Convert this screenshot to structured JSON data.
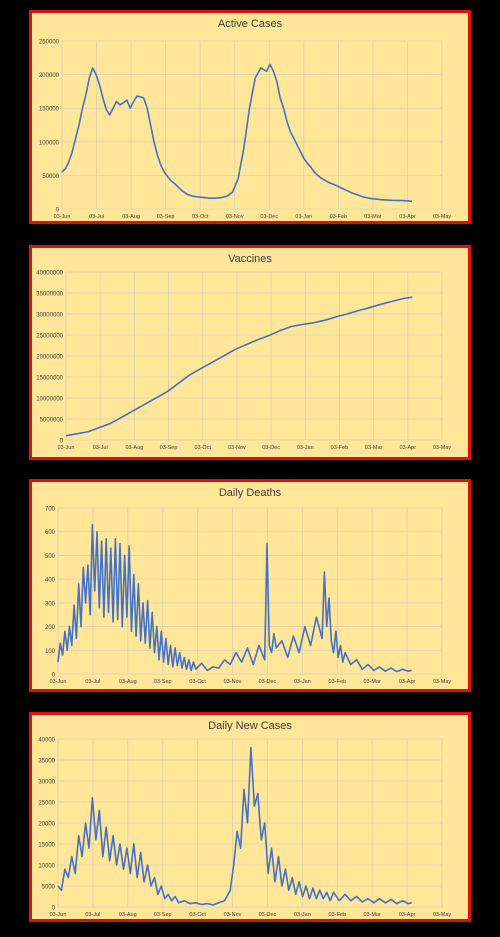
{
  "colors": {
    "background": "#000000",
    "panel_fill": "#ffe699",
    "panel_border": "#e01010",
    "line": "#4472c4",
    "grid": "#d9d0b0",
    "text": "#404040"
  },
  "chart_data": [
    {
      "type": "line",
      "title": "Active Cases",
      "xlabel": "",
      "ylabel": "",
      "ylim": [
        0,
        250000
      ],
      "yticks": [
        0,
        50000,
        100000,
        150000,
        200000,
        250000
      ],
      "yticklabels": [
        "0",
        "50000",
        "100000",
        "150000",
        "200000",
        "250000"
      ],
      "xticklabels": [
        "03-Jun",
        "03-Jul",
        "03-Aug",
        "03-Sep",
        "03-Oct",
        "03-Nov",
        "03-Dec",
        "03-Jan",
        "03-Feb",
        "03-Mar",
        "03-Apr",
        "03-May"
      ],
      "grid": true,
      "series": [
        {
          "x": [
            0,
            3,
            6,
            9,
            12,
            15,
            18,
            21,
            24,
            27,
            30,
            33,
            36,
            39,
            42,
            45,
            48,
            51,
            54,
            57,
            60,
            63,
            66,
            69,
            72,
            75,
            78,
            81,
            84,
            87,
            90,
            93,
            96,
            99,
            102,
            105,
            110,
            115,
            120,
            125,
            130,
            135,
            140,
            145,
            150,
            155,
            160,
            165,
            170,
            175,
            180,
            183,
            186,
            189,
            192,
            195,
            198,
            201,
            204,
            207,
            210,
            213,
            216,
            219,
            222,
            225,
            228,
            231,
            234,
            237,
            240,
            245,
            250,
            255,
            260,
            265,
            270,
            275,
            280,
            285,
            290,
            295,
            300,
            305,
            308
          ],
          "y": [
            55000,
            60000,
            70000,
            85000,
            105000,
            125000,
            150000,
            170000,
            195000,
            210000,
            200000,
            185000,
            165000,
            148000,
            140000,
            150000,
            160000,
            155000,
            158000,
            162000,
            150000,
            160000,
            168000,
            167000,
            165000,
            150000,
            125000,
            100000,
            80000,
            65000,
            55000,
            48000,
            42000,
            38000,
            33000,
            28000,
            22000,
            19000,
            18000,
            17000,
            16000,
            16000,
            17000,
            19000,
            25000,
            45000,
            90000,
            150000,
            195000,
            210000,
            205000,
            215000,
            205000,
            190000,
            165000,
            150000,
            130000,
            115000,
            105000,
            95000,
            85000,
            75000,
            68000,
            62000,
            55000,
            50000,
            46000,
            43000,
            40000,
            38000,
            36000,
            32000,
            28000,
            24000,
            21000,
            18000,
            16000,
            15000,
            14000,
            13500,
            13000,
            12800,
            12500,
            12000,
            11500
          ]
        }
      ]
    },
    {
      "type": "line",
      "title": "Vaccines",
      "xlabel": "",
      "ylabel": "",
      "ylim": [
        0,
        40000000
      ],
      "yticks": [
        0,
        5000000,
        10000000,
        15000000,
        20000000,
        25000000,
        30000000,
        35000000,
        40000000
      ],
      "yticklabels": [
        "0",
        "5000000",
        "10000000",
        "15000000",
        "20000000",
        "25000000",
        "30000000",
        "35000000",
        "40000000"
      ],
      "xticklabels": [
        "03-Jun",
        "03-Jul",
        "03-Aug",
        "03-Sep",
        "03-Oct",
        "03-Nov",
        "03-Dec",
        "03-Jan",
        "03-Feb",
        "03-Mar",
        "03-Apr",
        "03-May"
      ],
      "grid": true,
      "series": [
        {
          "x": [
            0,
            10,
            20,
            30,
            40,
            50,
            60,
            70,
            80,
            90,
            100,
            110,
            120,
            130,
            140,
            150,
            160,
            170,
            180,
            190,
            200,
            210,
            220,
            230,
            240,
            250,
            260,
            270,
            280,
            290,
            300,
            308
          ],
          "y": [
            1000000,
            1500000,
            2000000,
            3000000,
            4000000,
            5500000,
            7000000,
            8500000,
            10000000,
            11500000,
            13500000,
            15500000,
            17000000,
            18500000,
            20000000,
            21500000,
            22700000,
            23800000,
            24800000,
            26000000,
            27000000,
            27500000,
            27900000,
            28500000,
            29300000,
            30000000,
            30800000,
            31500000,
            32300000,
            33000000,
            33700000,
            34000000
          ]
        }
      ]
    },
    {
      "type": "line",
      "title": "Daily Deaths",
      "xlabel": "",
      "ylabel": "",
      "ylim": [
        0,
        700
      ],
      "yticks": [
        0,
        100,
        200,
        300,
        400,
        500,
        600,
        700
      ],
      "yticklabels": [
        "0",
        "100",
        "200",
        "300",
        "400",
        "500",
        "600",
        "700"
      ],
      "xticklabels": [
        "03-Jun",
        "03-Jul",
        "03-Aug",
        "03-Sep",
        "03-Oct",
        "03-Nov",
        "03-Dec",
        "03-Jan",
        "03-Feb",
        "03-Mar",
        "03-Apr",
        "03-May"
      ],
      "grid": true,
      "series": [
        {
          "x": [
            0,
            2,
            4,
            6,
            8,
            10,
            12,
            14,
            16,
            18,
            20,
            22,
            24,
            26,
            28,
            30,
            32,
            34,
            36,
            38,
            40,
            42,
            44,
            46,
            48,
            50,
            52,
            54,
            56,
            58,
            60,
            62,
            64,
            66,
            68,
            70,
            72,
            74,
            76,
            78,
            80,
            82,
            84,
            86,
            88,
            90,
            92,
            94,
            96,
            98,
            100,
            102,
            104,
            106,
            108,
            110,
            112,
            114,
            116,
            118,
            120,
            125,
            130,
            135,
            140,
            145,
            150,
            155,
            160,
            165,
            170,
            175,
            180,
            182,
            184,
            186,
            188,
            190,
            195,
            200,
            205,
            210,
            215,
            220,
            225,
            230,
            232,
            234,
            236,
            238,
            240,
            242,
            244,
            246,
            248,
            250,
            255,
            260,
            265,
            270,
            275,
            280,
            285,
            290,
            295,
            300,
            305,
            308
          ],
          "y": [
            50,
            130,
            80,
            180,
            100,
            200,
            120,
            290,
            150,
            380,
            200,
            450,
            300,
            460,
            250,
            630,
            350,
            600,
            280,
            560,
            240,
            570,
            260,
            530,
            220,
            570,
            230,
            550,
            200,
            500,
            240,
            540,
            180,
            420,
            160,
            380,
            140,
            300,
            130,
            310,
            110,
            260,
            90,
            200,
            60,
            180,
            50,
            150,
            40,
            120,
            30,
            110,
            35,
            90,
            25,
            70,
            20,
            60,
            15,
            50,
            20,
            45,
            15,
            30,
            25,
            60,
            40,
            90,
            50,
            110,
            40,
            120,
            60,
            550,
            120,
            90,
            170,
            110,
            140,
            70,
            160,
            90,
            200,
            120,
            240,
            150,
            430,
            200,
            320,
            140,
            90,
            180,
            70,
            120,
            50,
            90,
            40,
            60,
            20,
            40,
            15,
            30,
            12,
            25,
            10,
            20,
            12,
            15
          ]
        }
      ]
    },
    {
      "type": "line",
      "title": "Daily New Cases",
      "xlabel": "",
      "ylabel": "",
      "ylim": [
        0,
        40000
      ],
      "yticks": [
        0,
        5000,
        10000,
        15000,
        20000,
        25000,
        30000,
        35000,
        40000
      ],
      "yticklabels": [
        "0",
        "5000",
        "10000",
        "15000",
        "20000",
        "25000",
        "30000",
        "35000",
        "40000"
      ],
      "xticklabels": [
        "03-Jun",
        "03-Jul",
        "03-Aug",
        "03-Sep",
        "03-Oct",
        "03-Nov",
        "03-Dec",
        "03-Jan",
        "03-Feb",
        "03-Mar",
        "03-Apr",
        "03-May"
      ],
      "grid": true,
      "series": [
        {
          "x": [
            0,
            3,
            6,
            9,
            12,
            15,
            18,
            21,
            24,
            27,
            30,
            33,
            36,
            39,
            42,
            45,
            48,
            51,
            54,
            57,
            60,
            63,
            66,
            69,
            72,
            75,
            78,
            81,
            84,
            87,
            90,
            93,
            96,
            99,
            102,
            105,
            110,
            115,
            120,
            125,
            130,
            135,
            140,
            145,
            150,
            153,
            156,
            159,
            162,
            165,
            168,
            171,
            174,
            177,
            180,
            183,
            186,
            189,
            192,
            195,
            198,
            201,
            204,
            207,
            210,
            213,
            216,
            219,
            222,
            225,
            228,
            231,
            234,
            237,
            240,
            245,
            250,
            255,
            260,
            265,
            270,
            275,
            280,
            285,
            290,
            295,
            300,
            305,
            308
          ],
          "y": [
            5000,
            4000,
            9000,
            7000,
            12000,
            8000,
            17000,
            12000,
            20000,
            14000,
            26000,
            16000,
            23000,
            12000,
            19000,
            11000,
            17000,
            10000,
            15000,
            9000,
            14000,
            8000,
            15000,
            7000,
            13000,
            6000,
            10000,
            5000,
            7000,
            3000,
            5000,
            2000,
            3000,
            1500,
            2500,
            1000,
            1500,
            800,
            1000,
            600,
            800,
            500,
            1000,
            1500,
            4000,
            10000,
            18000,
            14000,
            28000,
            20000,
            38000,
            24000,
            27000,
            16000,
            20000,
            8000,
            14000,
            6000,
            12000,
            5000,
            9000,
            4000,
            7000,
            3000,
            6000,
            2500,
            5000,
            2000,
            4500,
            2000,
            4000,
            2000,
            3500,
            1500,
            3500,
            1500,
            3000,
            1500,
            2500,
            1200,
            2000,
            1000,
            2000,
            1000,
            1800,
            800,
            1500,
            800,
            1000
          ]
        }
      ]
    }
  ]
}
